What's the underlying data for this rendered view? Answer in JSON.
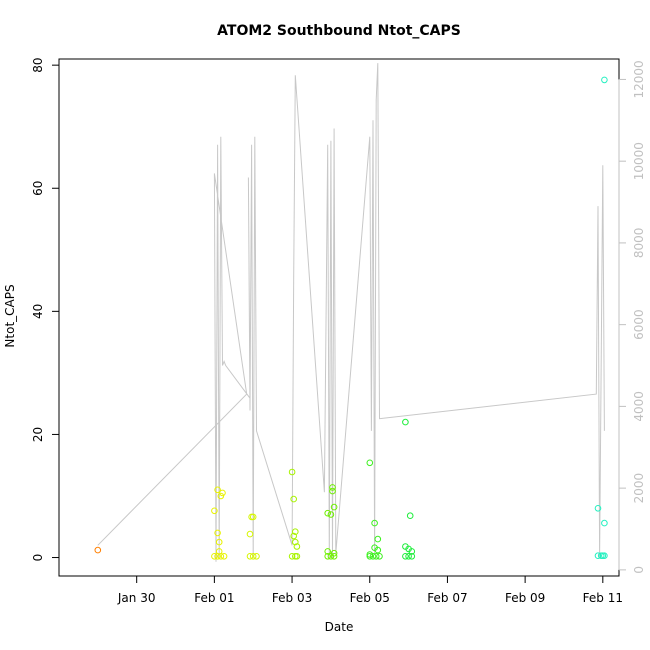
{
  "chart_data": {
    "type": "scatter",
    "title": "ATOM2 Southbound Ntot_CAPS",
    "xlabel": "Date",
    "ylabel": "Ntot_CAPS",
    "x_axis": {
      "type": "date",
      "range": [
        "2017-01-28T00:00",
        "2017-02-11T10:00"
      ],
      "ticks": [
        {
          "date": "2017-01-30",
          "label": "Jan 30"
        },
        {
          "date": "2017-02-01",
          "label": "Feb 01"
        },
        {
          "date": "2017-02-03",
          "label": "Feb 03"
        },
        {
          "date": "2017-02-05",
          "label": "Feb 05"
        },
        {
          "date": "2017-02-07",
          "label": "Feb 07"
        },
        {
          "date": "2017-02-09",
          "label": "Feb 09"
        },
        {
          "date": "2017-02-11",
          "label": "Feb 11"
        }
      ]
    },
    "y_axis_left": {
      "range": [
        -3,
        81
      ],
      "ticks": [
        0,
        20,
        40,
        60,
        80
      ]
    },
    "y_axis_right": {
      "range": [
        -150,
        12500
      ],
      "ticks": [
        0,
        2000,
        4000,
        6000,
        8000,
        10000,
        12000
      ],
      "color": "#c0c0c0"
    },
    "grid": false,
    "legend": "none",
    "points": [
      {
        "t": "2017-01-29T00:00",
        "y": 1.2,
        "color": "#ff7f00"
      },
      {
        "t": "2017-02-01T00:00",
        "y": 7.6,
        "color": "#e8f200"
      },
      {
        "t": "2017-02-01T02:00",
        "y": 11,
        "color": "#e8f200"
      },
      {
        "t": "2017-02-01T04:00",
        "y": 10,
        "color": "#e8f200"
      },
      {
        "t": "2017-02-01T05:00",
        "y": 10.5,
        "color": "#e8f200"
      },
      {
        "t": "2017-02-01T02:00",
        "y": 4,
        "color": "#e8f200"
      },
      {
        "t": "2017-02-01T03:00",
        "y": 2.5,
        "color": "#e8f200"
      },
      {
        "t": "2017-02-01T03:00",
        "y": 1,
        "color": "#e8f200"
      },
      {
        "t": "2017-02-01T00:00",
        "y": 0.2,
        "color": "#e8f200"
      },
      {
        "t": "2017-02-01T02:00",
        "y": 0.2,
        "color": "#e8f200"
      },
      {
        "t": "2017-02-01T04:00",
        "y": 0.2,
        "color": "#e8f200"
      },
      {
        "t": "2017-02-01T06:00",
        "y": 0.2,
        "color": "#e8f200"
      },
      {
        "t": "2017-02-01T22:00",
        "y": 3.8,
        "color": "#d6f600"
      },
      {
        "t": "2017-02-01T23:00",
        "y": 6.6,
        "color": "#d6f600"
      },
      {
        "t": "2017-02-02T00:00",
        "y": 6.6,
        "color": "#d6f600"
      },
      {
        "t": "2017-02-01T22:00",
        "y": 0.2,
        "color": "#d6f600"
      },
      {
        "t": "2017-02-02T00:00",
        "y": 0.2,
        "color": "#d6f600"
      },
      {
        "t": "2017-02-02T02:00",
        "y": 0.2,
        "color": "#d6f600"
      },
      {
        "t": "2017-02-03T00:00",
        "y": 13.9,
        "color": "#a8f400"
      },
      {
        "t": "2017-02-03T01:00",
        "y": 9.5,
        "color": "#a8f400"
      },
      {
        "t": "2017-02-03T02:00",
        "y": 4.2,
        "color": "#a8f400"
      },
      {
        "t": "2017-02-03T01:00",
        "y": 3.5,
        "color": "#a8f400"
      },
      {
        "t": "2017-02-03T02:00",
        "y": 2.5,
        "color": "#a8f400"
      },
      {
        "t": "2017-02-03T03:00",
        "y": 1.8,
        "color": "#a8f400"
      },
      {
        "t": "2017-02-03T00:00",
        "y": 0.2,
        "color": "#a8f400"
      },
      {
        "t": "2017-02-03T02:00",
        "y": 0.2,
        "color": "#a8f400"
      },
      {
        "t": "2017-02-03T03:00",
        "y": 0.2,
        "color": "#a8f400"
      },
      {
        "t": "2017-02-03T22:00",
        "y": 7.2,
        "color": "#6ef000"
      },
      {
        "t": "2017-02-04T00:00",
        "y": 7.0,
        "color": "#6ef000"
      },
      {
        "t": "2017-02-04T01:00",
        "y": 11.4,
        "color": "#6ef000"
      },
      {
        "t": "2017-02-04T01:00",
        "y": 10.8,
        "color": "#6ef000"
      },
      {
        "t": "2017-02-04T02:00",
        "y": 8.2,
        "color": "#6ef000"
      },
      {
        "t": "2017-02-03T22:00",
        "y": 1.0,
        "color": "#6ef000"
      },
      {
        "t": "2017-02-04T02:00",
        "y": 0.7,
        "color": "#6ef000"
      },
      {
        "t": "2017-02-03T22:00",
        "y": 0.2,
        "color": "#6ef000"
      },
      {
        "t": "2017-02-04T00:00",
        "y": 0.2,
        "color": "#6ef000"
      },
      {
        "t": "2017-02-04T02:00",
        "y": 0.2,
        "color": "#6ef000"
      },
      {
        "t": "2017-02-05T00:00",
        "y": 15.4,
        "color": "#3cf01e"
      },
      {
        "t": "2017-02-05T03:00",
        "y": 5.6,
        "color": "#3cf01e"
      },
      {
        "t": "2017-02-05T05:00",
        "y": 3.0,
        "color": "#3cf01e"
      },
      {
        "t": "2017-02-05T03:00",
        "y": 1.6,
        "color": "#3cf01e"
      },
      {
        "t": "2017-02-05T05:00",
        "y": 1.2,
        "color": "#3cf01e"
      },
      {
        "t": "2017-02-05T00:00",
        "y": 0.5,
        "color": "#3cf01e"
      },
      {
        "t": "2017-02-05T00:00",
        "y": 0.2,
        "color": "#3cf01e"
      },
      {
        "t": "2017-02-05T02:00",
        "y": 0.2,
        "color": "#3cf01e"
      },
      {
        "t": "2017-02-05T04:00",
        "y": 0.2,
        "color": "#3cf01e"
      },
      {
        "t": "2017-02-05T06:00",
        "y": 0.2,
        "color": "#3cf01e"
      },
      {
        "t": "2017-02-05T22:00",
        "y": 22.0,
        "color": "#1cee3a"
      },
      {
        "t": "2017-02-06T01:00",
        "y": 6.8,
        "color": "#1cee3a"
      },
      {
        "t": "2017-02-05T22:00",
        "y": 1.8,
        "color": "#1cee3a"
      },
      {
        "t": "2017-02-06T00:00",
        "y": 1.4,
        "color": "#1cee3a"
      },
      {
        "t": "2017-02-06T02:00",
        "y": 1.0,
        "color": "#1cee3a"
      },
      {
        "t": "2017-02-05T22:00",
        "y": 0.2,
        "color": "#1cee3a"
      },
      {
        "t": "2017-02-06T00:00",
        "y": 0.2,
        "color": "#1cee3a"
      },
      {
        "t": "2017-02-06T02:00",
        "y": 0.2,
        "color": "#1cee3a"
      },
      {
        "t": "2017-02-10T21:00",
        "y": 8.0,
        "color": "#24f0c0"
      },
      {
        "t": "2017-02-11T01:00",
        "y": 77.6,
        "color": "#24f0c0"
      },
      {
        "t": "2017-02-11T01:00",
        "y": 5.6,
        "color": "#24f0c0"
      },
      {
        "t": "2017-02-10T21:00",
        "y": 0.3,
        "color": "#24f0c0"
      },
      {
        "t": "2017-02-10T23:00",
        "y": 0.3,
        "color": "#24f0c0"
      },
      {
        "t": "2017-02-11T00:00",
        "y": 0.3,
        "color": "#24f0c0"
      },
      {
        "t": "2017-02-11T01:00",
        "y": 0.3,
        "color": "#24f0c0"
      }
    ],
    "right_series": {
      "name": "",
      "color": "#c8c8c8",
      "axis": "right",
      "points": [
        {
          "t": "2017-01-29T00:00",
          "y": 600
        },
        {
          "t": "2017-02-01T20:00",
          "y": 4300
        },
        {
          "t": "2017-02-01T00:00",
          "y": 9700
        },
        {
          "t": "2017-02-01T01:00",
          "y": 200
        },
        {
          "t": "2017-02-01T02:00",
          "y": 10400
        },
        {
          "t": "2017-02-01T03:00",
          "y": 300
        },
        {
          "t": "2017-02-01T04:00",
          "y": 10600
        },
        {
          "t": "2017-02-01T05:00",
          "y": 5000
        },
        {
          "t": "2017-02-01T06:00",
          "y": 5100
        },
        {
          "t": "2017-02-01T07:00",
          "y": 5000
        },
        {
          "t": "2017-02-01T22:00",
          "y": 4200
        },
        {
          "t": "2017-02-01T21:00",
          "y": 9600
        },
        {
          "t": "2017-02-01T22:00",
          "y": 3900
        },
        {
          "t": "2017-02-01T23:00",
          "y": 10400
        },
        {
          "t": "2017-02-02T00:00",
          "y": 300
        },
        {
          "t": "2017-02-02T01:00",
          "y": 10600
        },
        {
          "t": "2017-02-02T02:00",
          "y": 3400
        },
        {
          "t": "2017-02-03T00:00",
          "y": 600
        },
        {
          "t": "2017-02-03T01:00",
          "y": 7200
        },
        {
          "t": "2017-02-03T02:00",
          "y": 12100
        },
        {
          "t": "2017-02-03T20:00",
          "y": 1900
        },
        {
          "t": "2017-02-03T22:00",
          "y": 10400
        },
        {
          "t": "2017-02-03T23:00",
          "y": 300
        },
        {
          "t": "2017-02-04T00:00",
          "y": 10500
        },
        {
          "t": "2017-02-04T01:00",
          "y": 300
        },
        {
          "t": "2017-02-04T02:00",
          "y": 10800
        },
        {
          "t": "2017-02-04T03:00",
          "y": 400
        },
        {
          "t": "2017-02-05T00:00",
          "y": 10600
        },
        {
          "t": "2017-02-05T01:00",
          "y": 3400
        },
        {
          "t": "2017-02-05T02:00",
          "y": 11000
        },
        {
          "t": "2017-02-05T03:00",
          "y": 400
        },
        {
          "t": "2017-02-05T04:00",
          "y": 11500
        },
        {
          "t": "2017-02-05T05:00",
          "y": 12400
        },
        {
          "t": "2017-02-05T06:00",
          "y": 3700
        },
        {
          "t": "2017-02-10T20:00",
          "y": 4300
        },
        {
          "t": "2017-02-10T21:00",
          "y": 8900
        },
        {
          "t": "2017-02-10T22:00",
          "y": 300
        },
        {
          "t": "2017-02-11T00:00",
          "y": 9900
        },
        {
          "t": "2017-02-11T01:00",
          "y": 3400
        }
      ]
    }
  }
}
